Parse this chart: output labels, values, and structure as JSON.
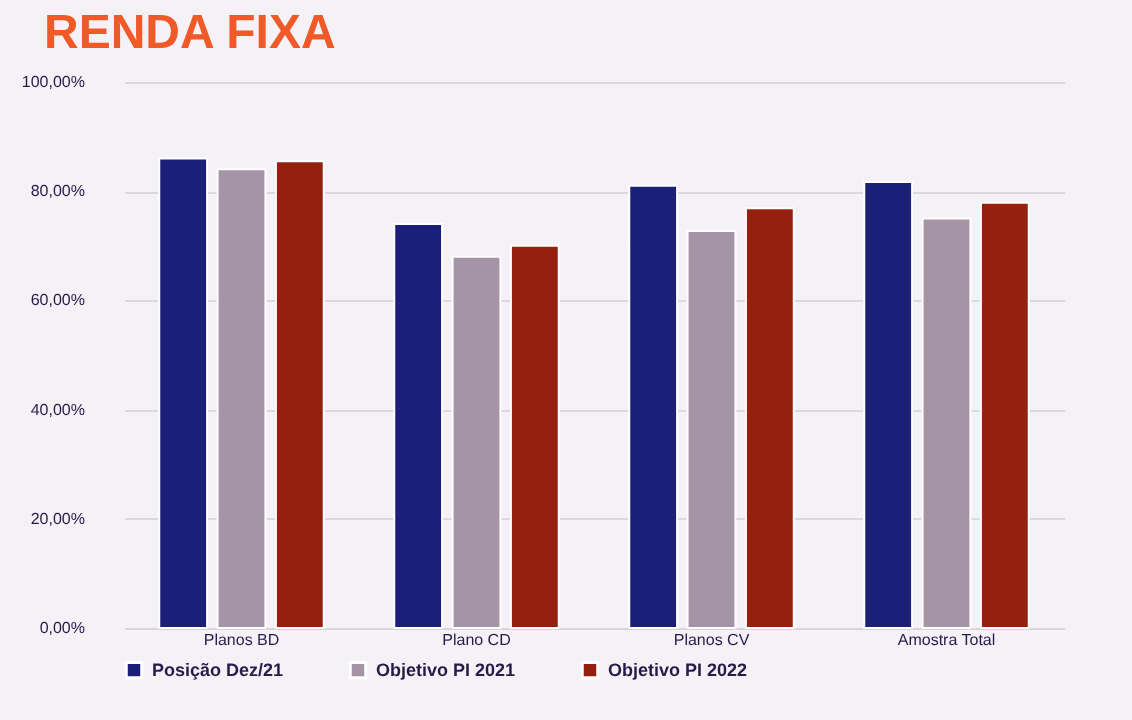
{
  "chart_data": {
    "type": "bar",
    "title": "RENDA FIXA",
    "categories": [
      "Planos BD",
      "Plano CD",
      "Planos CV",
      "Amostra Total"
    ],
    "series": [
      {
        "name": "Posição Dez/21",
        "color": "#1c1f78",
        "values": [
          86,
          74,
          81,
          81.7
        ]
      },
      {
        "name": "Objetivo PI 2021",
        "color": "#a593a6",
        "values": [
          84,
          68,
          72.7,
          75
        ]
      },
      {
        "name": "Objetivo PI 2022",
        "color": "#952010",
        "values": [
          85.5,
          70,
          76.9,
          77.9
        ]
      }
    ],
    "ylim": [
      0,
      100
    ],
    "yticks": [
      {
        "value": 0,
        "label": "0,00%"
      },
      {
        "value": 20,
        "label": "20,00%"
      },
      {
        "value": 40,
        "label": "40,00%"
      },
      {
        "value": 60,
        "label": "60,00%"
      },
      {
        "value": 80,
        "label": "80,00%"
      },
      {
        "value": 100,
        "label": "100,00%"
      }
    ],
    "grid": "y",
    "legend": "bottom"
  }
}
